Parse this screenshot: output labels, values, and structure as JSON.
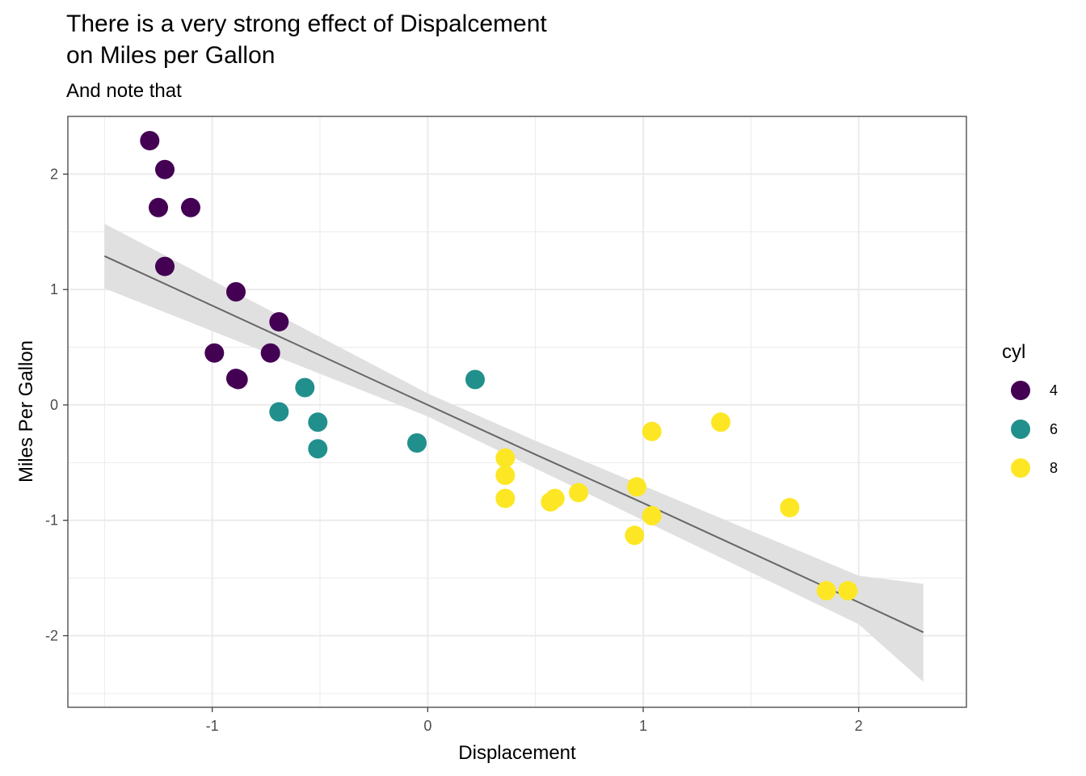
{
  "chart_data": {
    "type": "scatter",
    "title_line1": "There is a very strong effect of Dispalcement",
    "title_line2": "on Miles per Gallon",
    "subtitle": "And note that",
    "xlabel": "Displacement",
    "ylabel": "Miles Per Gallon",
    "xlim": [
      -1.67,
      2.5
    ],
    "ylim": [
      -2.62,
      2.5
    ],
    "x_ticks": [
      -1,
      0,
      1,
      2
    ],
    "x_tick_labels": [
      "-1",
      "0",
      "1",
      "2"
    ],
    "y_ticks": [
      -2,
      -1,
      0,
      1,
      2
    ],
    "y_tick_labels": [
      "-2",
      "-1",
      "0",
      "1",
      "2"
    ],
    "grid": true,
    "legend": {
      "title": "cyl",
      "position": "right",
      "entries": [
        {
          "label": "4",
          "color": "#440154"
        },
        {
          "label": "6",
          "color": "#21908c"
        },
        {
          "label": "8",
          "color": "#fde725"
        }
      ]
    },
    "series": [
      {
        "name": "4",
        "color": "#440154",
        "points": [
          [
            -1.29,
            2.29
          ],
          [
            -1.22,
            2.04
          ],
          [
            -1.25,
            1.71
          ],
          [
            -1.1,
            1.71
          ],
          [
            -1.22,
            1.2
          ],
          [
            -0.89,
            0.98
          ],
          [
            -0.69,
            0.72
          ],
          [
            -0.99,
            0.45
          ],
          [
            -0.73,
            0.45
          ],
          [
            -0.89,
            0.23
          ],
          [
            -0.88,
            0.22
          ]
        ]
      },
      {
        "name": "6",
        "color": "#21908c",
        "points": [
          [
            -0.57,
            0.15
          ],
          [
            0.22,
            0.22
          ],
          [
            -0.69,
            -0.06
          ],
          [
            -0.51,
            -0.15
          ],
          [
            -0.51,
            -0.38
          ],
          [
            -0.05,
            -0.33
          ]
        ]
      },
      {
        "name": "8",
        "color": "#fde725",
        "points": [
          [
            0.36,
            -0.46
          ],
          [
            0.36,
            -0.61
          ],
          [
            0.36,
            -0.81
          ],
          [
            0.57,
            -0.84
          ],
          [
            0.59,
            -0.81
          ],
          [
            0.7,
            -0.76
          ],
          [
            0.97,
            -0.71
          ],
          [
            1.04,
            -0.96
          ],
          [
            0.96,
            -1.13
          ],
          [
            1.04,
            -0.23
          ],
          [
            1.36,
            -0.15
          ],
          [
            1.68,
            -0.89
          ],
          [
            1.85,
            -1.61
          ],
          [
            1.95,
            -1.61
          ]
        ]
      }
    ],
    "regression": {
      "color": "#666666",
      "band_color": "#e0e0e0",
      "x": [
        -1.5,
        -1.0,
        -0.5,
        0.0,
        0.5,
        1.0,
        1.5,
        2.0,
        2.3
      ],
      "y": [
        1.29,
        0.86,
        0.43,
        0.0,
        -0.43,
        -0.85,
        -1.28,
        -1.71,
        -1.97
      ],
      "lower": [
        1.01,
        0.64,
        0.27,
        -0.1,
        -0.55,
        -1.0,
        -1.45,
        -1.9,
        -2.4
      ],
      "upper": [
        1.57,
        1.08,
        0.59,
        0.1,
        -0.31,
        -0.7,
        -1.09,
        -1.48,
        -1.55
      ]
    }
  }
}
